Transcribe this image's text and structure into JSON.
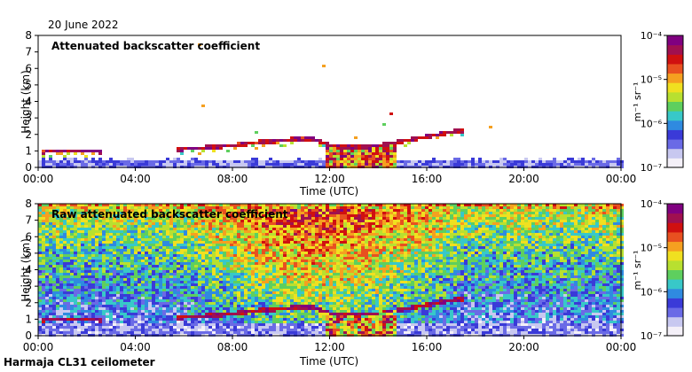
{
  "date": "20 June 2022",
  "footer": "Harmaja CL31 ceilometer",
  "colors": {
    "frame": "#000000",
    "scale": [
      "#f4f0f8",
      "#c8c8f0",
      "#6a6ae6",
      "#3a3ad8",
      "#2f8ae0",
      "#38c8c8",
      "#5ecf5e",
      "#b8e030",
      "#f0e020",
      "#f5a020",
      "#e85020",
      "#d01010",
      "#a01050",
      "#800080"
    ]
  },
  "chart_data": [
    {
      "type": "heatmap",
      "title": "Attenuated backscatter coefficient",
      "xlabel": "Time (UTC)",
      "ylabel": "Height (km)",
      "xticks": [
        "00:00",
        "04:00",
        "08:00",
        "12:00",
        "16:00",
        "20:00",
        "00:00"
      ],
      "xlim_hours": [
        0,
        24
      ],
      "yticks": [
        "0",
        "1",
        "2",
        "3",
        "4",
        "5",
        "6",
        "7",
        "8"
      ],
      "ylim_km": [
        0,
        8
      ],
      "colorbar": {
        "unit_label": "m⁻¹ sr⁻¹",
        "tick_labels": [
          "10⁻⁴",
          "10⁻⁵",
          "10⁻⁶",
          "10⁻⁷"
        ],
        "log_range": [
          -7,
          -4
        ]
      },
      "features": {
        "cloud_base_km": [
          [
            0.2,
            0.95
          ],
          [
            1.5,
            1.0
          ],
          [
            2.6,
            0.95
          ],
          [
            5.8,
            1.1
          ],
          [
            7.5,
            1.25
          ],
          [
            9.0,
            1.5
          ],
          [
            10.5,
            1.7
          ],
          [
            11.3,
            1.75
          ],
          [
            12.0,
            1.3
          ],
          [
            13.0,
            1.2
          ],
          [
            14.0,
            1.3
          ],
          [
            15.0,
            1.6
          ],
          [
            16.2,
            1.9
          ],
          [
            17.3,
            2.2
          ]
        ],
        "surface_layer_top_km": 0.4,
        "convective_period_hours": [
          11.8,
          14.8
        ]
      }
    },
    {
      "type": "heatmap",
      "title": "Raw attenuated backscatter coefficient",
      "xlabel": "Time (UTC)",
      "ylabel": "Height (km)",
      "xticks": [
        "00:00",
        "04:00",
        "08:00",
        "12:00",
        "16:00",
        "20:00",
        "00:00"
      ],
      "xlim_hours": [
        0,
        24
      ],
      "yticks": [
        "0",
        "1",
        "2",
        "3",
        "4",
        "5",
        "6",
        "7",
        "8"
      ],
      "ylim_km": [
        0,
        8
      ],
      "colorbar": {
        "unit_label": "m⁻¹ sr⁻¹",
        "tick_labels": [
          "10⁻⁴",
          "10⁻⁵",
          "10⁻⁶",
          "10⁻⁷"
        ],
        "log_range": [
          -7,
          -4
        ]
      },
      "features": {
        "cloud_base_km": [
          [
            0.2,
            0.95
          ],
          [
            1.5,
            1.0
          ],
          [
            2.6,
            0.95
          ],
          [
            5.8,
            1.1
          ],
          [
            7.5,
            1.25
          ],
          [
            9.0,
            1.5
          ],
          [
            10.5,
            1.7
          ],
          [
            11.3,
            1.75
          ],
          [
            12.0,
            1.3
          ],
          [
            13.0,
            1.2
          ],
          [
            14.0,
            1.3
          ],
          [
            15.0,
            1.6
          ],
          [
            16.2,
            1.9
          ],
          [
            17.3,
            2.2
          ]
        ],
        "high_noise_period_hours": [
          5.8,
          17.5
        ]
      }
    }
  ]
}
